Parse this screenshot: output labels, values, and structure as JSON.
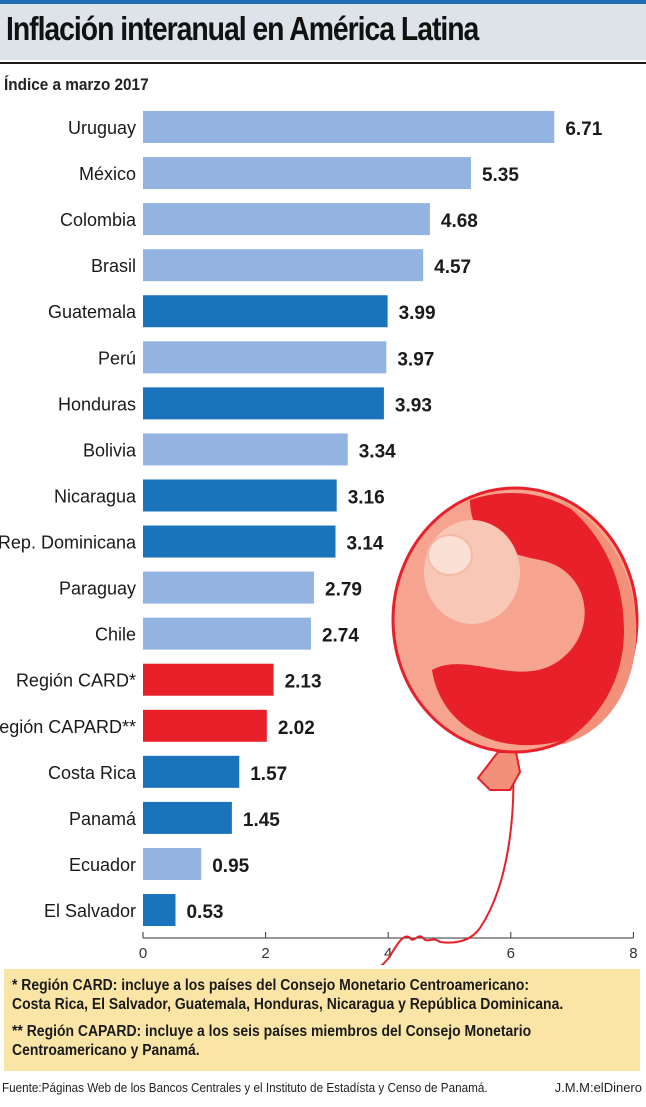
{
  "header": {
    "title": "Inflación interanual en América Latina",
    "subtitle": "Índice a marzo 2017"
  },
  "colors": {
    "light_blue": "#93b4e0",
    "dark_blue": "#1b73bb",
    "red": "#e8202a",
    "note_bg": "#fbe5a6"
  },
  "chart_data": {
    "type": "bar",
    "orientation": "horizontal",
    "title": "Inflación interanual en América Latina",
    "subtitle": "Índice a marzo 2017",
    "xlim": [
      0,
      8
    ],
    "xticks": [
      "0",
      "2",
      "4",
      "6",
      "8"
    ],
    "grid": false,
    "categories": [
      "Uruguay",
      "México",
      "Colombia",
      "Brasil",
      "Guatemala",
      "Perú",
      "Honduras",
      "Bolivia",
      "Nicaragua",
      "Rep. Dominicana",
      "Paraguay",
      "Chile",
      "Región CARD*",
      "Región CAPARD**",
      "Costa Rica",
      "Panamá",
      "Ecuador",
      "El Salvador"
    ],
    "values": [
      6.71,
      5.35,
      4.68,
      4.57,
      3.99,
      3.97,
      3.93,
      3.34,
      3.16,
      3.14,
      2.79,
      2.74,
      2.13,
      2.02,
      1.57,
      1.45,
      0.95,
      0.53
    ],
    "value_labels": [
      "6.71",
      "5.35",
      "4.68",
      "4.57",
      "3.99",
      "3.97",
      "3.93",
      "3.34",
      "3.16",
      "3.14",
      "2.79",
      "2.74",
      "2.13",
      "2.02",
      "1.57",
      "1.45",
      "0.95",
      "0.53"
    ],
    "bar_colors": [
      "#93b4e0",
      "#93b4e0",
      "#93b4e0",
      "#93b4e0",
      "#1b73bb",
      "#93b4e0",
      "#1b73bb",
      "#93b4e0",
      "#1b73bb",
      "#1b73bb",
      "#93b4e0",
      "#93b4e0",
      "#e8202a",
      "#e8202a",
      "#1b73bb",
      "#1b73bb",
      "#93b4e0",
      "#1b73bb"
    ]
  },
  "notes": {
    "card_line1": "* Región CARD: incluye a los países del Consejo Monetario Centroamericano:",
    "card_line2": "Costa Rica, El Salvador, Guatemala, Honduras, Nicaragua y República Dominicana.",
    "capard_line1": "** Región CAPARD: incluye a los seis países miembros del Consejo Monetario",
    "capard_line2": "Centroamericano y Panamá."
  },
  "footer": {
    "source": "Fuente:Páginas Web de los Bancos Centrales y el Instituto de Estadísta y Censo de Panamá.",
    "credit": "J.M.M:elDinero"
  }
}
